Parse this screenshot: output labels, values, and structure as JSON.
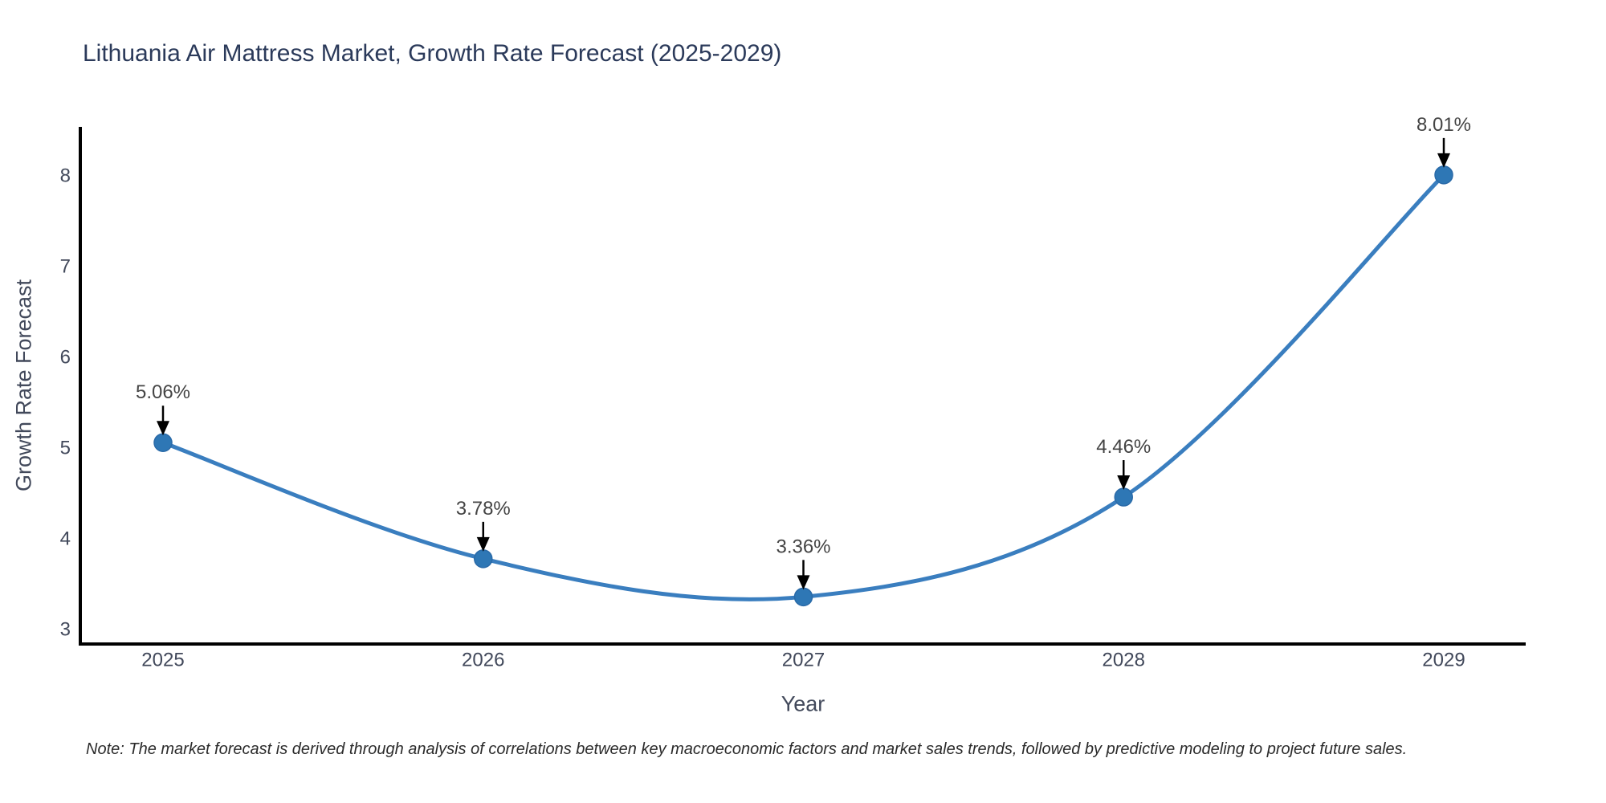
{
  "page": {
    "title": "Lithuania Air Mattress Market, Growth Rate Forecast (2025-2029)",
    "note": "Note: The market forecast is derived through analysis of correlations between key macroeconomic factors and market sales trends, followed by predictive modeling to project future sales."
  },
  "chart_data": {
    "type": "line",
    "title": "Lithuania Air Mattress Market, Growth Rate Forecast (2025-2029)",
    "xlabel": "Year",
    "ylabel": "Growth Rate Forecast",
    "categories": [
      "2025",
      "2026",
      "2027",
      "2028",
      "2029"
    ],
    "values": [
      5.06,
      3.78,
      3.36,
      4.46,
      8.01
    ],
    "point_labels": [
      "5.06%",
      "3.78%",
      "3.36%",
      "4.46%",
      "8.01%"
    ],
    "yticks": [
      3,
      4,
      5,
      6,
      7,
      8
    ],
    "ylim": [
      2.84,
      8.54
    ],
    "line_shape": "spline",
    "markers": true,
    "grid": false,
    "legend_position": "none",
    "annotation_style": "value label with black arrow pointing down to each marker",
    "colors": {
      "line": "#3a7ebf",
      "marker_fill": "#2e77b5",
      "marker_edge": "#2a6aa8",
      "axis_line": "#000000",
      "tick_label": "#42495b",
      "axis_title": "#42495b",
      "chart_title": "#2b3a5a",
      "annotation_text": "#444444",
      "annotation_arrow": "#000000",
      "background": "#ffffff"
    }
  }
}
